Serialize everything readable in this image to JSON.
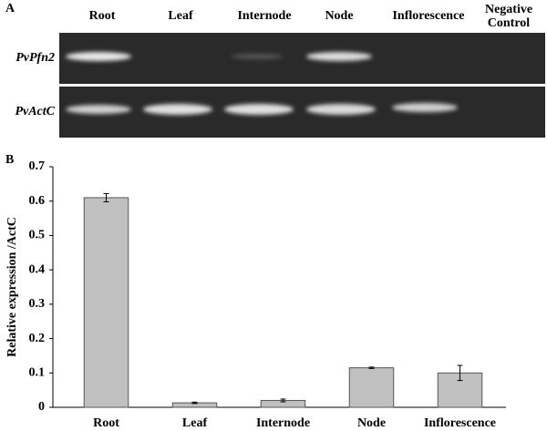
{
  "gel": {
    "panel_label": "A",
    "lanes": [
      "Root",
      "Leaf",
      "Internode",
      "Node",
      "Inflorescence"
    ],
    "negative_control": [
      "Negative",
      "Control"
    ],
    "rows": [
      "PvPfn2",
      "PvActC"
    ]
  },
  "chart_data": {
    "type": "bar",
    "panel_label": "B",
    "categories": [
      "Root",
      "Leaf",
      "Internode",
      "Node",
      "Inflorescence"
    ],
    "values": [
      0.61,
      0.013,
      0.02,
      0.115,
      0.1
    ],
    "errors": [
      0.012,
      0.002,
      0.004,
      0.002,
      0.022
    ],
    "color": "#c0c0c0",
    "ylabel": "Relative expression /ActC",
    "ylim": [
      0,
      0.7
    ],
    "yticks": [
      0,
      0.1,
      0.2,
      0.3,
      0.4,
      0.5,
      0.6,
      0.7
    ],
    "grid": false
  }
}
